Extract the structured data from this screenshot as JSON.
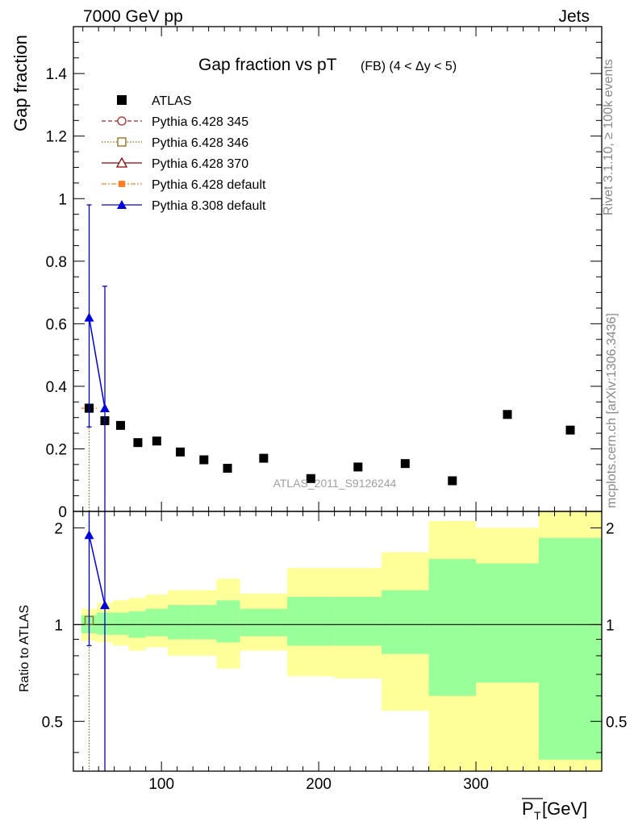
{
  "header": {
    "left": "7000 GeV pp",
    "right": "Jets"
  },
  "side_labels": {
    "rivet": "Rivet 3.1.10, ≥ 100k events",
    "mcplots": "mcplots.cern.ch [arXiv:1306.3436]"
  },
  "chart_data": [
    {
      "type": "scatter",
      "title": "Gap fraction vs pT",
      "title_small": "(FB) (4 < Δy < 5)",
      "ylabel": "Gap fraction",
      "watermark": "ATLAS_2011_S9126244",
      "xlim": [
        44,
        380
      ],
      "ylim": [
        0,
        1.55
      ],
      "yticks": [
        0,
        0.2,
        0.4,
        0.6,
        0.8,
        1,
        1.2,
        1.4
      ],
      "ytick_labels": [
        "0",
        "0.2",
        "0.4",
        "0.6",
        "0.8",
        "1",
        "1.2",
        "1.4"
      ],
      "legend": [
        {
          "name": "ATLAS",
          "color": "#000000",
          "marker": "square",
          "line": "none"
        },
        {
          "name": "Pythia 6.428 345",
          "color": "#b22222",
          "marker": "open-circle",
          "line": "dashed"
        },
        {
          "name": "Pythia 6.428 346",
          "color": "#8b6914",
          "marker": "open-square",
          "line": "dotted"
        },
        {
          "name": "Pythia 6.428 370",
          "color": "#8b0000",
          "marker": "open-triangle",
          "line": "solid"
        },
        {
          "name": "Pythia 6.428 default",
          "color": "#ff7f27",
          "marker": "filled-square",
          "line": "dashdot"
        },
        {
          "name": "Pythia 8.308 default",
          "color": "#0000dd",
          "marker": "filled-triangle",
          "line": "solid"
        }
      ],
      "atlas_points": [
        {
          "x": 54,
          "y": 0.33
        },
        {
          "x": 64,
          "y": 0.29
        },
        {
          "x": 74,
          "y": 0.275
        },
        {
          "x": 85,
          "y": 0.22
        },
        {
          "x": 97,
          "y": 0.225
        },
        {
          "x": 112,
          "y": 0.19
        },
        {
          "x": 127,
          "y": 0.165
        },
        {
          "x": 142,
          "y": 0.138
        },
        {
          "x": 165,
          "y": 0.17
        },
        {
          "x": 195,
          "y": 0.105
        },
        {
          "x": 225,
          "y": 0.142
        },
        {
          "x": 255,
          "y": 0.153
        },
        {
          "x": 285,
          "y": 0.098
        },
        {
          "x": 320,
          "y": 0.31
        },
        {
          "x": 360,
          "y": 0.26
        }
      ],
      "pythia6_points": [
        {
          "x": 54,
          "y": 0.33,
          "x_low": 49,
          "x_high": 59
        }
      ],
      "pythia8_points": [
        {
          "x": 54,
          "y": 0.62,
          "err_low": 0.27,
          "err_high": 0.98
        },
        {
          "x": 64,
          "y": 0.33,
          "err_low": 0.0,
          "err_high": 0.72
        }
      ]
    },
    {
      "type": "area",
      "ylabel": "Ratio to ATLAS",
      "xlabel": "P_T [GeV]",
      "xlabel_main": "P",
      "xlabel_sub": "T",
      "xlabel_unit": " [GeV]",
      "xlim": [
        44,
        380
      ],
      "ylim": [
        0.35,
        2.25
      ],
      "yticks": [
        0.5,
        1,
        2
      ],
      "ytick_labels": [
        "0.5",
        "1",
        "2"
      ],
      "xticks": [
        100,
        200,
        300
      ],
      "xtick_labels": [
        "100",
        "200",
        "300"
      ],
      "bands": [
        {
          "x0": 49,
          "x1": 59,
          "y_lo": 0.89,
          "y_hi": 1.12,
          "g_lo": 0.94,
          "g_hi": 1.07
        },
        {
          "x0": 59,
          "x1": 69,
          "y_lo": 0.88,
          "y_hi": 1.17,
          "g_lo": 0.93,
          "g_hi": 1.09
        },
        {
          "x0": 69,
          "x1": 79,
          "y_lo": 0.86,
          "y_hi": 1.19,
          "g_lo": 0.93,
          "g_hi": 1.09
        },
        {
          "x0": 79,
          "x1": 90,
          "y_lo": 0.83,
          "y_hi": 1.21,
          "g_lo": 0.91,
          "g_hi": 1.1
        },
        {
          "x0": 90,
          "x1": 104,
          "y_lo": 0.85,
          "y_hi": 1.24,
          "g_lo": 0.92,
          "g_hi": 1.12
        },
        {
          "x0": 104,
          "x1": 120,
          "y_lo": 0.8,
          "y_hi": 1.28,
          "g_lo": 0.9,
          "g_hi": 1.15
        },
        {
          "x0": 120,
          "x1": 135,
          "y_lo": 0.8,
          "y_hi": 1.28,
          "g_lo": 0.9,
          "g_hi": 1.15
        },
        {
          "x0": 135,
          "x1": 150,
          "y_lo": 0.73,
          "y_hi": 1.39,
          "g_lo": 0.88,
          "g_hi": 1.19
        },
        {
          "x0": 150,
          "x1": 180,
          "y_lo": 0.83,
          "y_hi": 1.25,
          "g_lo": 0.92,
          "g_hi": 1.12
        },
        {
          "x0": 180,
          "x1": 210,
          "y_lo": 0.69,
          "y_hi": 1.5,
          "g_lo": 0.86,
          "g_hi": 1.22
        },
        {
          "x0": 210,
          "x1": 240,
          "y_lo": 0.68,
          "y_hi": 1.5,
          "g_lo": 0.86,
          "g_hi": 1.22
        },
        {
          "x0": 240,
          "x1": 270,
          "y_lo": 0.54,
          "y_hi": 1.68,
          "g_lo": 0.81,
          "g_hi": 1.28
        },
        {
          "x0": 270,
          "x1": 300,
          "y_lo": 0.3,
          "y_hi": 2.1,
          "g_lo": 0.6,
          "g_hi": 1.6
        },
        {
          "x0": 300,
          "x1": 340,
          "y_lo": 0.3,
          "y_hi": 2.0,
          "g_lo": 0.66,
          "g_hi": 1.55
        },
        {
          "x0": 340,
          "x1": 380,
          "y_lo": 0.3,
          "y_hi": 2.6,
          "g_lo": 0.38,
          "g_hi": 1.86
        }
      ],
      "pythia6_ratio": [
        {
          "x": 54,
          "y": 1.03
        }
      ],
      "pythia8_ratio": [
        {
          "x": 54,
          "y": 1.9,
          "err_low": 0.86,
          "err_high": 3.0
        },
        {
          "x": 64,
          "y": 1.15,
          "err_low": 0.3,
          "err_high": 2.5
        }
      ],
      "band_colors": {
        "yellow": "#ffff99",
        "green": "#99ff99"
      }
    }
  ]
}
